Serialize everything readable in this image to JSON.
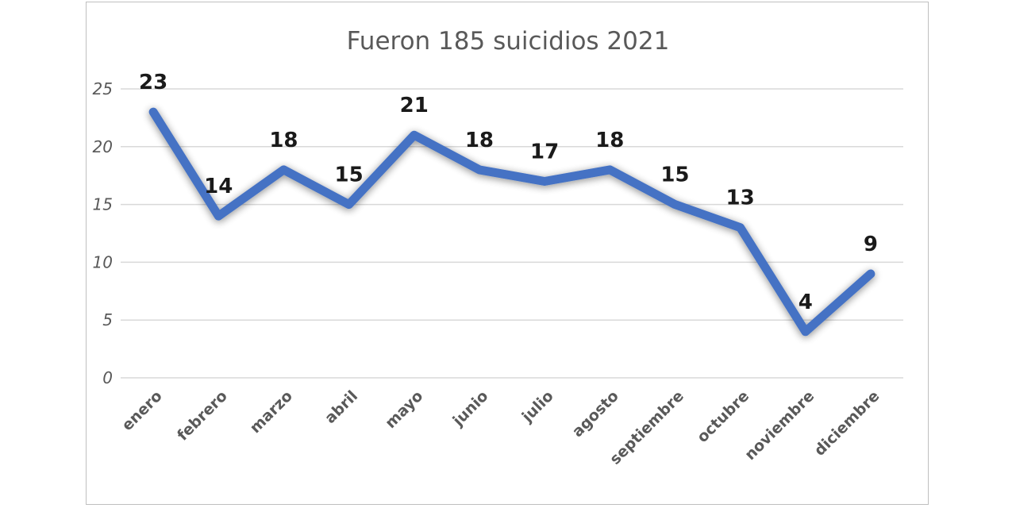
{
  "chart_data": {
    "type": "line",
    "title": "Fueron 185 suicidios 2021",
    "xlabel": "",
    "ylabel": "",
    "categories": [
      "enero",
      "febrero",
      "marzo",
      "abril",
      "mayo",
      "junio",
      "julio",
      "agosto",
      "septiembre",
      "octubre",
      "noviembre",
      "diciembre"
    ],
    "series": [
      {
        "values": [
          23,
          14,
          18,
          15,
          21,
          18,
          17,
          18,
          15,
          13,
          4,
          9
        ]
      }
    ],
    "data_labels": [
      "23",
      "14",
      "18",
      "15",
      "21",
      "18",
      "17",
      "18",
      "15",
      "13",
      "4",
      "9"
    ],
    "ylim": [
      0,
      25
    ],
    "yticks": [
      "0",
      "5",
      "10",
      "15",
      "20",
      "25"
    ],
    "grid": true,
    "legend": "none",
    "colors": {
      "line": "#4472c4",
      "grid": "#d9d9d9",
      "text": "#595959"
    }
  }
}
